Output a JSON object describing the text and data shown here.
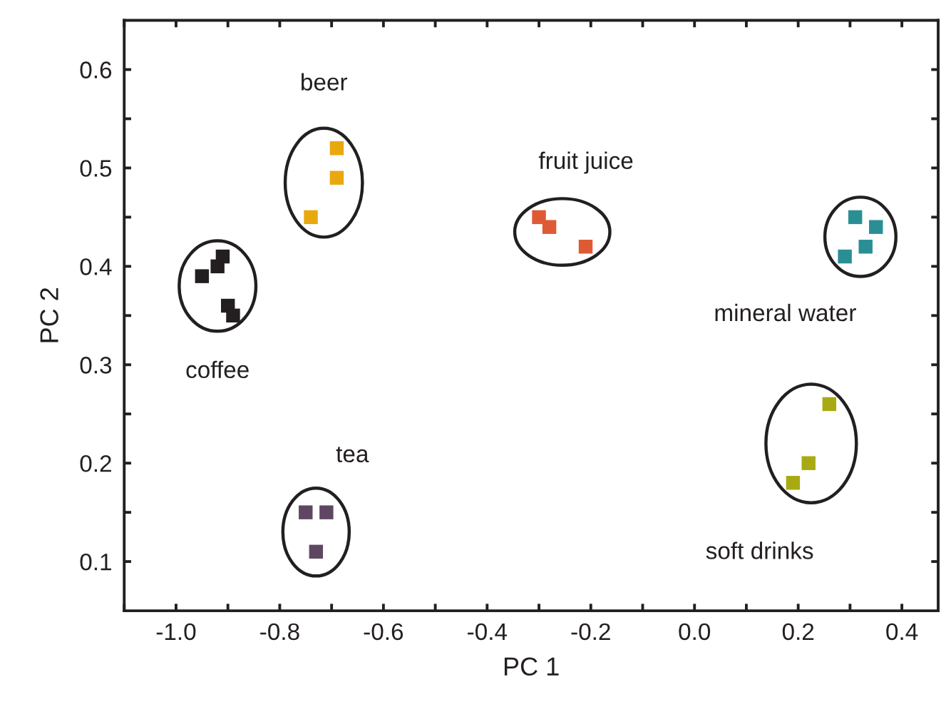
{
  "chart_data": {
    "type": "scatter",
    "xlabel": "PC 1",
    "ylabel": "PC 2",
    "marker": "square",
    "legend": false,
    "grid": false,
    "xlim": [
      -1.1,
      0.47
    ],
    "ylim": [
      0.05,
      0.65
    ],
    "xticks": [
      {
        "value": -1.1,
        "label": null
      },
      {
        "value": -1.0,
        "label": "-1.0"
      },
      {
        "value": -0.9,
        "label": null
      },
      {
        "value": -0.8,
        "label": "-0.8"
      },
      {
        "value": -0.7,
        "label": null
      },
      {
        "value": -0.6,
        "label": "-0.6"
      },
      {
        "value": -0.5,
        "label": null
      },
      {
        "value": -0.4,
        "label": "-0.4"
      },
      {
        "value": -0.3,
        "label": null
      },
      {
        "value": -0.2,
        "label": "-0.2"
      },
      {
        "value": -0.1,
        "label": null
      },
      {
        "value": 0.0,
        "label": "0.0"
      },
      {
        "value": 0.1,
        "label": null
      },
      {
        "value": 0.2,
        "label": "0.2"
      },
      {
        "value": 0.3,
        "label": null
      },
      {
        "value": 0.4,
        "label": "0.4"
      }
    ],
    "yticks": [
      {
        "value": 0.1,
        "label": "0.1"
      },
      {
        "value": 0.15,
        "label": null
      },
      {
        "value": 0.2,
        "label": "0.2"
      },
      {
        "value": 0.25,
        "label": null
      },
      {
        "value": 0.3,
        "label": "0.3"
      },
      {
        "value": 0.35,
        "label": null
      },
      {
        "value": 0.4,
        "label": "0.4"
      },
      {
        "value": 0.45,
        "label": null
      },
      {
        "value": 0.5,
        "label": "0.5"
      },
      {
        "value": 0.55,
        "label": null
      },
      {
        "value": 0.6,
        "label": "0.6"
      }
    ],
    "series": [
      {
        "name": "coffee",
        "color": "#231f20",
        "x": [
          -0.95,
          -0.92,
          -0.91,
          -0.9,
          -0.89
        ],
        "values": [
          0.39,
          0.4,
          0.41,
          0.36,
          0.35
        ]
      },
      {
        "name": "beer",
        "color": "#e8a90f",
        "x": [
          -0.69,
          -0.69,
          -0.74
        ],
        "values": [
          0.52,
          0.49,
          0.45
        ]
      },
      {
        "name": "tea",
        "color": "#5f4763",
        "x": [
          -0.75,
          -0.71,
          -0.73
        ],
        "values": [
          0.15,
          0.15,
          0.11
        ]
      },
      {
        "name": "fruit juice",
        "color": "#de5a35",
        "x": [
          -0.3,
          -0.28,
          -0.21
        ],
        "values": [
          0.45,
          0.44,
          0.42
        ]
      },
      {
        "name": "mineral water",
        "color": "#2a8f95",
        "x": [
          0.31,
          0.35,
          0.33,
          0.29
        ],
        "values": [
          0.45,
          0.44,
          0.42,
          0.41
        ]
      },
      {
        "name": "soft drinks",
        "color": "#a8aa14",
        "x": [
          0.26,
          0.22,
          0.19
        ],
        "values": [
          0.26,
          0.2,
          0.18
        ]
      }
    ]
  }
}
